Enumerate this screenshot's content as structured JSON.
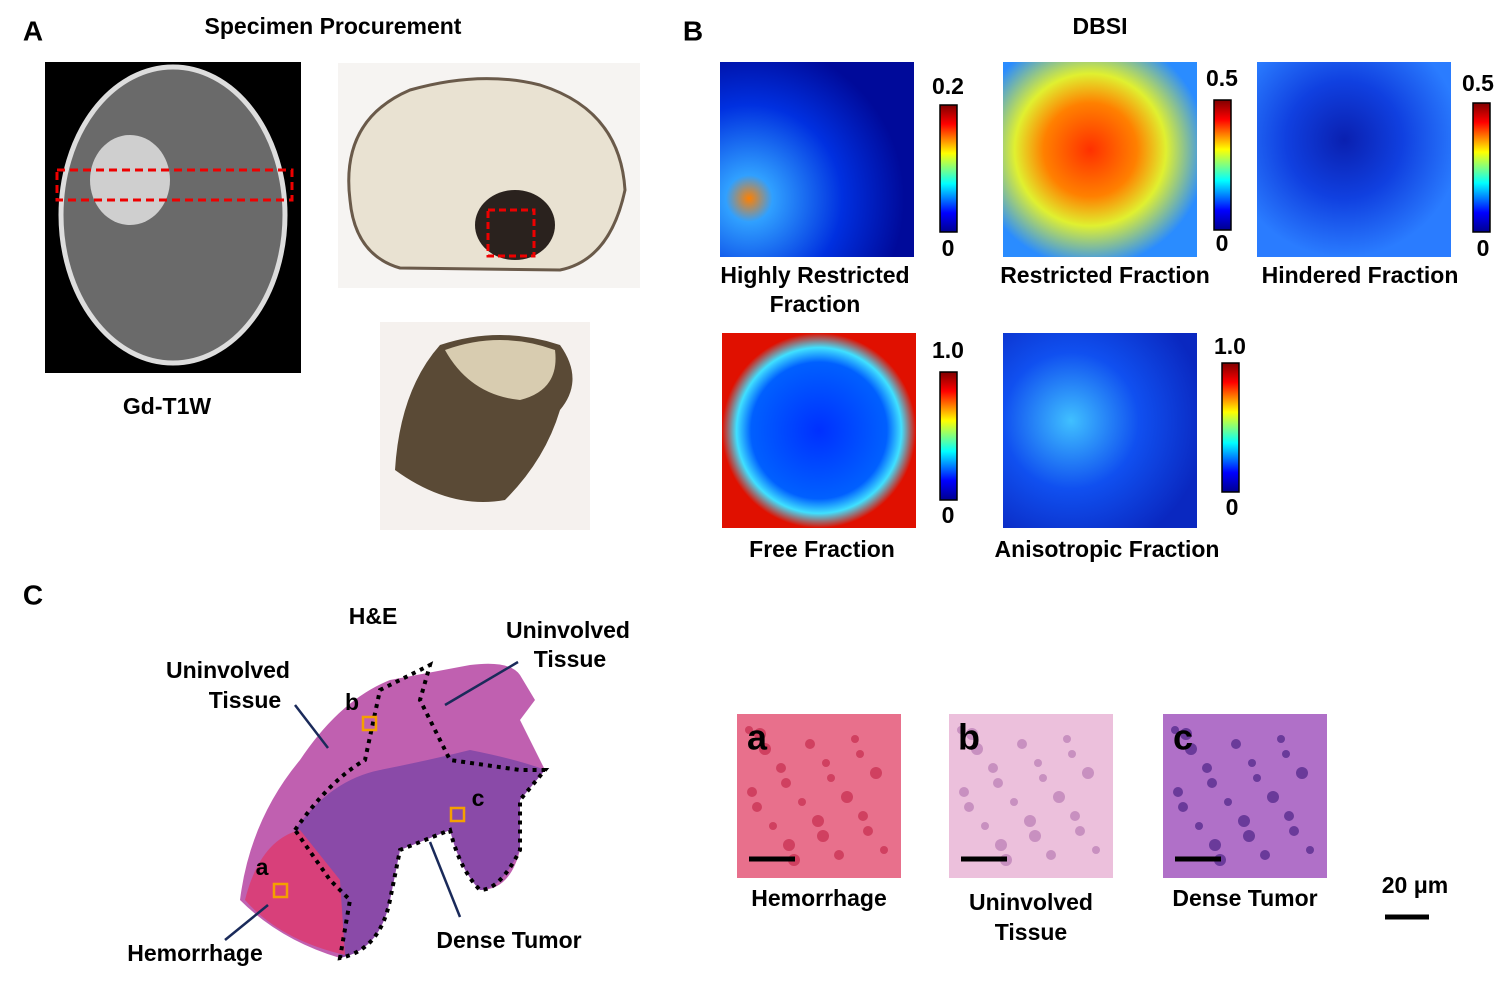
{
  "panel_a": {
    "letter": "A",
    "title": "Specimen Procurement",
    "mri_label": "Gd-T1W"
  },
  "panel_b": {
    "letter": "B",
    "title": "DBSI",
    "maps": [
      {
        "label": [
          "Highly Restricted",
          "Fraction"
        ],
        "max": "0.2",
        "min": "0"
      },
      {
        "label": [
          "Restricted Fraction"
        ],
        "max": "0.5",
        "min": "0"
      },
      {
        "label": [
          "Hindered Fraction"
        ],
        "max": "0.5",
        "min": "0"
      },
      {
        "label": [
          "Free Fraction"
        ],
        "max": "1.0",
        "min": "0"
      },
      {
        "label": [
          "Anisotropic Fraction"
        ],
        "max": "1.0",
        "min": "0"
      }
    ]
  },
  "panel_c": {
    "letter": "C",
    "title": "H&E",
    "annotations": {
      "uninvolved_left": [
        "Uninvolved",
        "Tissue"
      ],
      "uninvolved_right": [
        "Uninvolved",
        "Tissue"
      ],
      "hemorrhage": "Hemorrhage",
      "dense_tumor": "Dense Tumor",
      "box_a": "a",
      "box_b": "b",
      "box_c": "c"
    },
    "insets": [
      {
        "letter": "a",
        "label": [
          "Hemorrhage"
        ]
      },
      {
        "letter": "b",
        "label": [
          "Uninvolved",
          "Tissue"
        ]
      },
      {
        "letter": "c",
        "label": [
          "Dense Tumor"
        ]
      }
    ],
    "scale_bar": "20 μm"
  }
}
